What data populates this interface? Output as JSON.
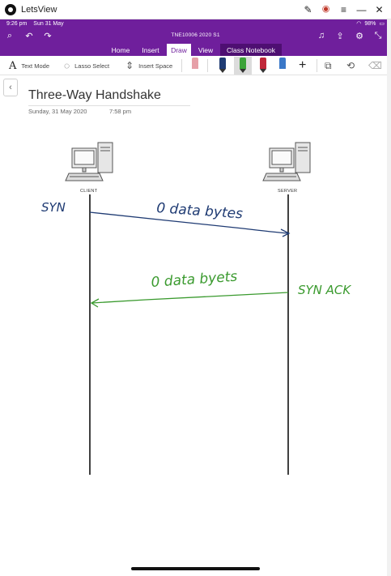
{
  "window": {
    "app_title": "LetsView"
  },
  "status": {
    "time": "9:26 pm",
    "date": "Sun 31 May",
    "battery": "98%"
  },
  "appbar": {
    "notebook_title": "TNE10006 2020 S1"
  },
  "tabs": [
    {
      "label": "Home"
    },
    {
      "label": "Insert"
    },
    {
      "label": "Draw"
    },
    {
      "label": "View"
    },
    {
      "label": "Class Notebook"
    }
  ],
  "toolbar": {
    "text_mode": "Text Mode",
    "lasso_select": "Lasso Select",
    "insert_space": "Insert Space"
  },
  "pens": [
    {
      "color": "#e6a0a8"
    },
    {
      "color": "#1f3b73"
    },
    {
      "color": "#3da33a"
    },
    {
      "color": "#c0283a"
    },
    {
      "color": "#3a78c8"
    }
  ],
  "page": {
    "title": "Three-Way Handshake",
    "date": "Sunday, 31 May 2020",
    "time": "7:58 pm"
  },
  "diagram": {
    "client_label": "CLIENT",
    "server_label": "SERVER",
    "syn_text": "SYN",
    "syn_payload": "0 data bytes",
    "synack_text": "SYN ACK",
    "synack_payload": "0 data byets",
    "blue_ink": "#1f3b73",
    "green_ink": "#3a9a2e"
  }
}
